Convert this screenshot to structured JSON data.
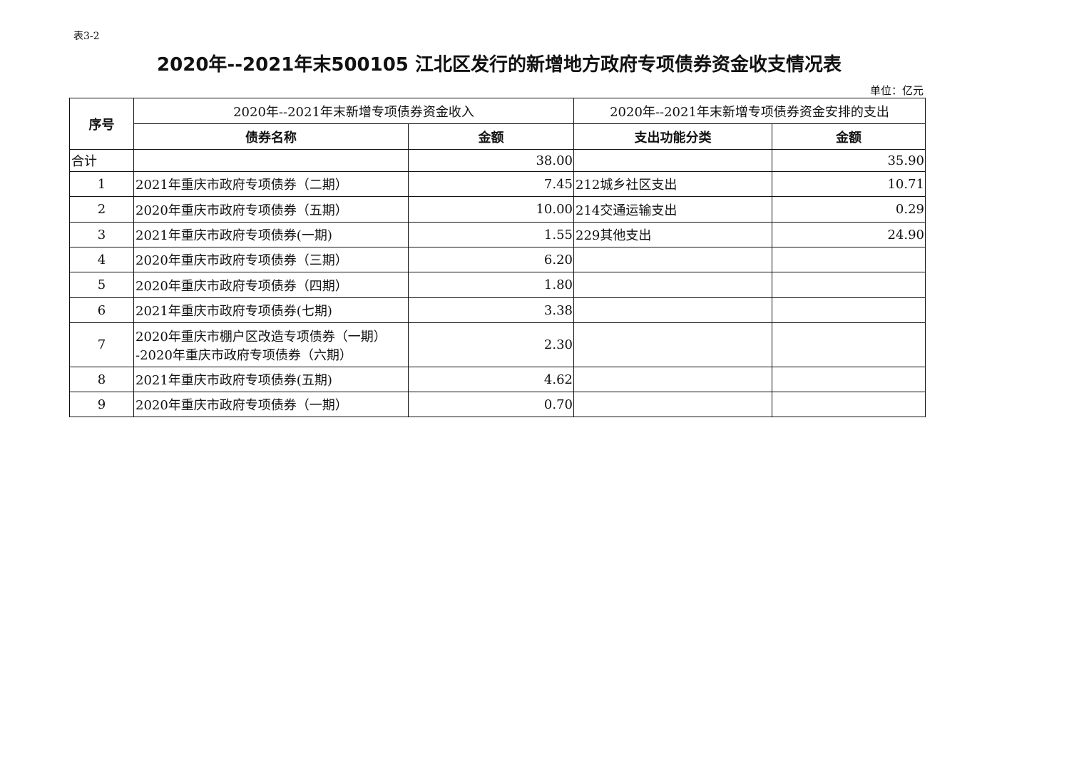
{
  "table_no": "表3-2",
  "title": "2020年--2021年末500105 江北区发行的新增地方政府专项债券资金收支情况表",
  "unit": "单位：亿元",
  "header": {
    "seq": "序号",
    "income_group": "2020年--2021年末新增专项债券资金收入",
    "expense_group": "2020年--2021年末新增专项债券资金安排的支出",
    "bond_name": "债券名称",
    "income_amount": "金额",
    "expense_category": "支出功能分类",
    "expense_amount": "金额"
  },
  "total": {
    "label": "合计",
    "income_amount": "38.00",
    "expense_amount": "35.90"
  },
  "rows": [
    {
      "seq": "1",
      "bond": "2021年重庆市政府专项债券（二期）",
      "amount": "7.45",
      "category": "212城乡社区支出",
      "expense": "10.71"
    },
    {
      "seq": "2",
      "bond": "2020年重庆市政府专项债券（五期）",
      "amount": "10.00",
      "category": "214交通运输支出",
      "expense": "0.29"
    },
    {
      "seq": "3",
      "bond": "2021年重庆市政府专项债券(一期)",
      "amount": "1.55",
      "category": "229其他支出",
      "expense": "24.90"
    },
    {
      "seq": "4",
      "bond": "2020年重庆市政府专项债券（三期）",
      "amount": "6.20",
      "category": "",
      "expense": ""
    },
    {
      "seq": "5",
      "bond": "2020年重庆市政府专项债券（四期）",
      "amount": "1.80",
      "category": "",
      "expense": ""
    },
    {
      "seq": "6",
      "bond": "2021年重庆市政府专项债券(七期)",
      "amount": "3.38",
      "category": "",
      "expense": ""
    },
    {
      "seq": "7",
      "bond": "2020年重庆市棚户区改造专项债券（一期）",
      "bond_line2": "-2020年重庆市政府专项债券（六期）",
      "amount": "2.30",
      "category": "",
      "expense": ""
    },
    {
      "seq": "8",
      "bond": "2021年重庆市政府专项债券(五期)",
      "amount": "4.62",
      "category": "",
      "expense": ""
    },
    {
      "seq": "9",
      "bond": "2020年重庆市政府专项债券（一期）",
      "amount": "0.70",
      "category": "",
      "expense": ""
    }
  ]
}
